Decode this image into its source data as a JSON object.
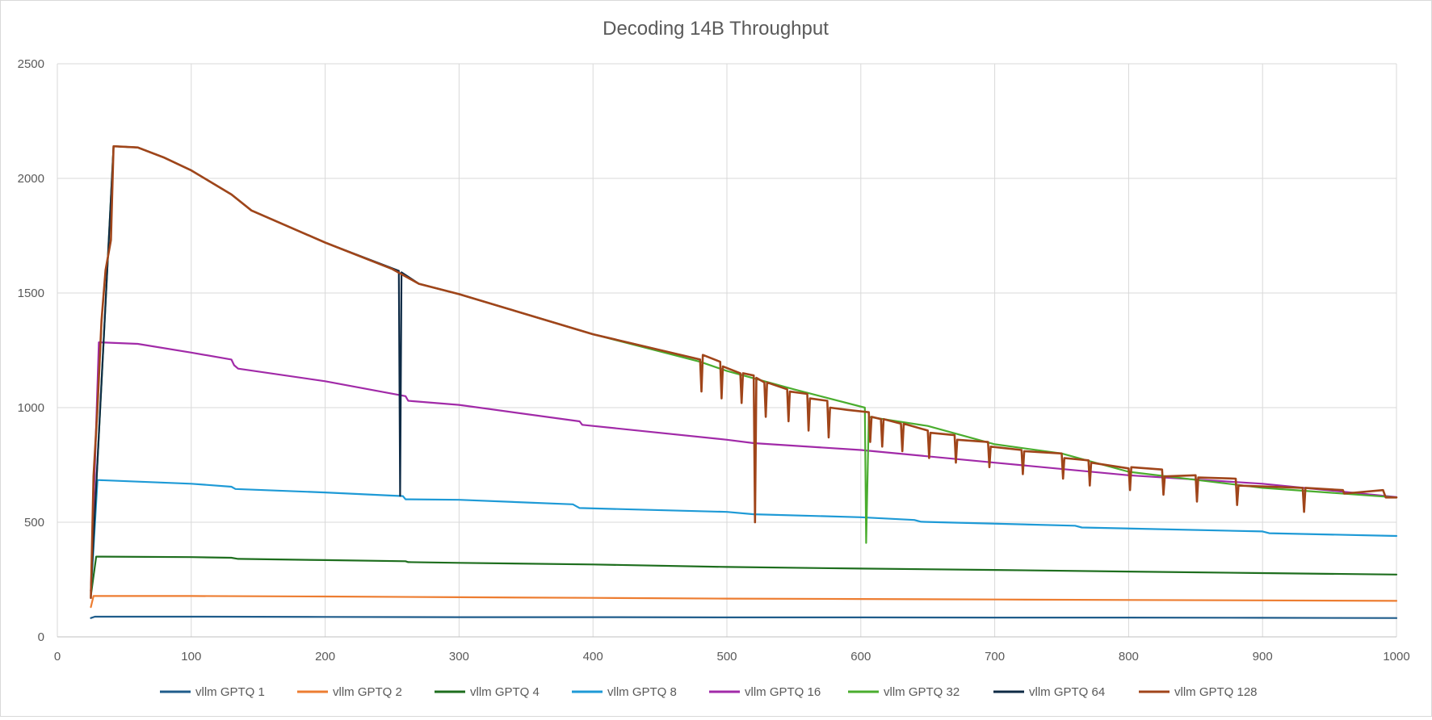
{
  "chart_data": {
    "type": "line",
    "title": "Decoding 14B Throughput",
    "xlabel": "",
    "ylabel": "",
    "xlim": [
      0,
      1000
    ],
    "ylim": [
      0,
      2500
    ],
    "x_ticks": [
      0,
      100,
      200,
      300,
      400,
      500,
      600,
      700,
      800,
      900,
      1000
    ],
    "y_ticks": [
      0,
      500,
      1000,
      1500,
      2000,
      2500
    ],
    "grid": true,
    "legend_position": "bottom",
    "series": [
      {
        "name": "vllm GPTQ  1",
        "color": "#1f5c8b",
        "points": [
          [
            25,
            82
          ],
          [
            28,
            88
          ],
          [
            100,
            88
          ],
          [
            200,
            87
          ],
          [
            300,
            86
          ],
          [
            400,
            86
          ],
          [
            500,
            85
          ],
          [
            600,
            85
          ],
          [
            700,
            84
          ],
          [
            800,
            84
          ],
          [
            900,
            83
          ],
          [
            1000,
            82
          ]
        ]
      },
      {
        "name": "vllm GPTQ  2",
        "color": "#ed7d31",
        "points": [
          [
            25,
            130
          ],
          [
            27,
            178
          ],
          [
            100,
            178
          ],
          [
            200,
            176
          ],
          [
            300,
            173
          ],
          [
            400,
            170
          ],
          [
            500,
            167
          ],
          [
            600,
            165
          ],
          [
            700,
            163
          ],
          [
            800,
            161
          ],
          [
            900,
            159
          ],
          [
            1000,
            157
          ]
        ]
      },
      {
        "name": "vllm GPTQ  4",
        "color": "#1e6e1e",
        "points": [
          [
            25,
            180
          ],
          [
            29,
            350
          ],
          [
            100,
            348
          ],
          [
            130,
            345
          ],
          [
            135,
            340
          ],
          [
            200,
            335
          ],
          [
            260,
            330
          ],
          [
            262,
            326
          ],
          [
            300,
            323
          ],
          [
            400,
            316
          ],
          [
            500,
            305
          ],
          [
            600,
            298
          ],
          [
            700,
            292
          ],
          [
            800,
            285
          ],
          [
            900,
            278
          ],
          [
            1000,
            272
          ]
        ]
      },
      {
        "name": "vllm GPTQ  8",
        "color": "#1e9ad6",
        "points": [
          [
            25,
            190
          ],
          [
            30,
            684
          ],
          [
            100,
            668
          ],
          [
            130,
            655
          ],
          [
            133,
            645
          ],
          [
            200,
            630
          ],
          [
            258,
            614
          ],
          [
            260,
            600
          ],
          [
            300,
            598
          ],
          [
            385,
            578
          ],
          [
            390,
            562
          ],
          [
            500,
            545
          ],
          [
            520,
            535
          ],
          [
            600,
            522
          ],
          [
            640,
            510
          ],
          [
            645,
            502
          ],
          [
            760,
            485
          ],
          [
            765,
            477
          ],
          [
            900,
            460
          ],
          [
            905,
            452
          ],
          [
            1000,
            440
          ]
        ]
      },
      {
        "name": "vllm GPTQ  16",
        "color": "#a12aa8",
        "points": [
          [
            25,
            200
          ],
          [
            31,
            1285
          ],
          [
            60,
            1278
          ],
          [
            100,
            1240
          ],
          [
            130,
            1210
          ],
          [
            132,
            1185
          ],
          [
            135,
            1170
          ],
          [
            200,
            1115
          ],
          [
            260,
            1050
          ],
          [
            262,
            1030
          ],
          [
            300,
            1012
          ],
          [
            390,
            940
          ],
          [
            392,
            925
          ],
          [
            500,
            860
          ],
          [
            520,
            845
          ],
          [
            600,
            815
          ],
          [
            700,
            760
          ],
          [
            800,
            705
          ],
          [
            900,
            668
          ],
          [
            1000,
            610
          ]
        ]
      },
      {
        "name": "vllm GPTQ  32",
        "color": "#4aad2e",
        "points": [
          [
            25,
            200
          ],
          [
            32,
            1000
          ],
          [
            42,
            2140
          ],
          [
            60,
            2135
          ],
          [
            80,
            2090
          ],
          [
            100,
            2035
          ],
          [
            130,
            1930
          ],
          [
            145,
            1860
          ],
          [
            200,
            1720
          ],
          [
            250,
            1605
          ],
          [
            270,
            1540
          ],
          [
            300,
            1495
          ],
          [
            400,
            1320
          ],
          [
            480,
            1200
          ],
          [
            500,
            1160
          ],
          [
            550,
            1080
          ],
          [
            603,
            1000
          ],
          [
            604,
            410
          ],
          [
            606,
            960
          ],
          [
            650,
            920
          ],
          [
            700,
            840
          ],
          [
            750,
            800
          ],
          [
            800,
            720
          ],
          [
            900,
            650
          ],
          [
            1000,
            608
          ]
        ]
      },
      {
        "name": "vllm GPTQ  64",
        "color": "#0d2a45",
        "points": [
          [
            25,
            200
          ],
          [
            32,
            1000
          ],
          [
            42,
            2140
          ],
          [
            60,
            2135
          ],
          [
            80,
            2090
          ],
          [
            100,
            2035
          ],
          [
            130,
            1930
          ],
          [
            145,
            1860
          ],
          [
            200,
            1720
          ],
          [
            255,
            1597
          ],
          [
            256,
            615
          ],
          [
            257,
            1590
          ],
          [
            270,
            1540
          ],
          [
            300,
            1495
          ],
          [
            400,
            1320
          ],
          [
            480,
            1210
          ]
        ]
      },
      {
        "name": "vllm GPTQ  128",
        "color": "#a0451a",
        "points": [
          [
            25,
            170
          ],
          [
            27,
            700
          ],
          [
            30,
            1000
          ],
          [
            33,
            1380
          ],
          [
            36,
            1600
          ],
          [
            40,
            1730
          ],
          [
            42,
            2140
          ],
          [
            60,
            2135
          ],
          [
            80,
            2090
          ],
          [
            100,
            2035
          ],
          [
            130,
            1930
          ],
          [
            145,
            1860
          ],
          [
            200,
            1720
          ],
          [
            250,
            1605
          ],
          [
            270,
            1540
          ],
          [
            300,
            1495
          ],
          [
            400,
            1320
          ],
          [
            480,
            1210
          ],
          [
            481,
            1070
          ],
          [
            482,
            1230
          ],
          [
            495,
            1200
          ],
          [
            496,
            1040
          ],
          [
            497,
            1180
          ],
          [
            510,
            1150
          ],
          [
            511,
            1020
          ],
          [
            512,
            1150
          ],
          [
            520,
            1140
          ],
          [
            521,
            500
          ],
          [
            522,
            1130
          ],
          [
            528,
            1110
          ],
          [
            529,
            960
          ],
          [
            530,
            1110
          ],
          [
            545,
            1080
          ],
          [
            546,
            940
          ],
          [
            547,
            1070
          ],
          [
            560,
            1060
          ],
          [
            561,
            900
          ],
          [
            562,
            1040
          ],
          [
            575,
            1030
          ],
          [
            576,
            870
          ],
          [
            577,
            1000
          ],
          [
            590,
            990
          ],
          [
            606,
            980
          ],
          [
            607,
            850
          ],
          [
            608,
            960
          ],
          [
            615,
            950
          ],
          [
            616,
            830
          ],
          [
            617,
            950
          ],
          [
            630,
            930
          ],
          [
            631,
            810
          ],
          [
            632,
            930
          ],
          [
            650,
            900
          ],
          [
            651,
            780
          ],
          [
            652,
            890
          ],
          [
            670,
            880
          ],
          [
            671,
            760
          ],
          [
            672,
            860
          ],
          [
            695,
            850
          ],
          [
            696,
            740
          ],
          [
            697,
            830
          ],
          [
            720,
            815
          ],
          [
            721,
            710
          ],
          [
            722,
            810
          ],
          [
            750,
            800
          ],
          [
            751,
            690
          ],
          [
            752,
            780
          ],
          [
            770,
            770
          ],
          [
            771,
            660
          ],
          [
            772,
            760
          ],
          [
            800,
            735
          ],
          [
            801,
            640
          ],
          [
            802,
            740
          ],
          [
            825,
            730
          ],
          [
            826,
            620
          ],
          [
            827,
            700
          ],
          [
            850,
            705
          ],
          [
            851,
            590
          ],
          [
            852,
            695
          ],
          [
            880,
            690
          ],
          [
            881,
            575
          ],
          [
            882,
            660
          ],
          [
            930,
            650
          ],
          [
            931,
            545
          ],
          [
            932,
            650
          ],
          [
            960,
            640
          ],
          [
            961,
            625
          ],
          [
            990,
            640
          ],
          [
            992,
            608
          ],
          [
            1000,
            608
          ]
        ]
      }
    ]
  }
}
